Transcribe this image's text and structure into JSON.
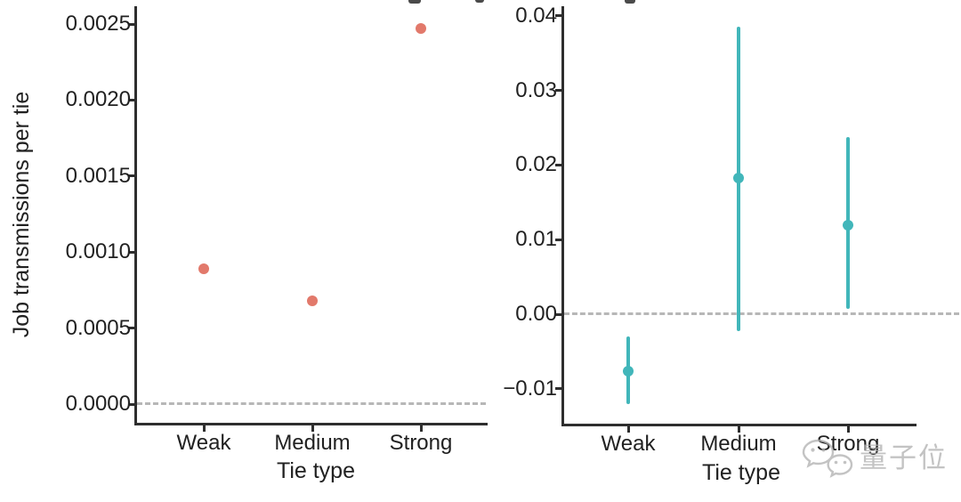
{
  "figure": {
    "description": "Two-panel scatter figure comparing tie strength categories",
    "background": "#ffffff"
  },
  "colors": {
    "salmon_point": "#e2796b",
    "teal_point": "#41b6ba",
    "dashed_reference": "#ababab",
    "axis": "#2e2e2e",
    "text": "#212121",
    "watermark": "#b0b0b0"
  },
  "chart_data": [
    {
      "type": "scatter",
      "panel": "left",
      "title": "",
      "categories": [
        "Weak",
        "Medium",
        "Strong"
      ],
      "values": [
        0.00089,
        0.00068,
        0.00247
      ],
      "xlabel": "Tie type",
      "ylabel": "Job transmissions per tie",
      "yticks": [
        0.0,
        0.0005,
        0.001,
        0.0015,
        0.002,
        0.0025
      ],
      "ytick_labels": [
        "0.0000",
        "0.0005",
        "0.0010",
        "0.0015",
        "0.0020",
        "0.0025"
      ],
      "ylim": [
        -0.00015,
        0.00262
      ],
      "grid": false,
      "legend": false,
      "reference_line": 0,
      "reference_style": "dashed",
      "point_color": "#e2796b"
    },
    {
      "type": "scatter",
      "panel": "right",
      "title": "",
      "categories": [
        "Weak",
        "Medium",
        "Strong"
      ],
      "series": [
        {
          "name": "estimate",
          "values": [
            -0.0076,
            0.0183,
            0.0119
          ]
        }
      ],
      "error_low": [
        -0.0121,
        -0.0023,
        0.0007
      ],
      "error_high": [
        -0.003,
        0.0385,
        0.0237
      ],
      "xlabel": "Tie type",
      "ylabel": "",
      "yticks": [
        -0.01,
        0.0,
        0.01,
        0.02,
        0.03,
        0.04
      ],
      "ytick_labels": [
        "−0.01",
        "0.00",
        "0.01",
        "0.02",
        "0.03",
        "0.04"
      ],
      "ylim": [
        -0.0147,
        0.0415
      ],
      "grid": false,
      "legend": false,
      "reference_line": 0,
      "reference_style": "dashed",
      "point_color": "#41b6ba"
    }
  ],
  "watermark": {
    "text": "量子位",
    "icon": "wechat-icon"
  }
}
